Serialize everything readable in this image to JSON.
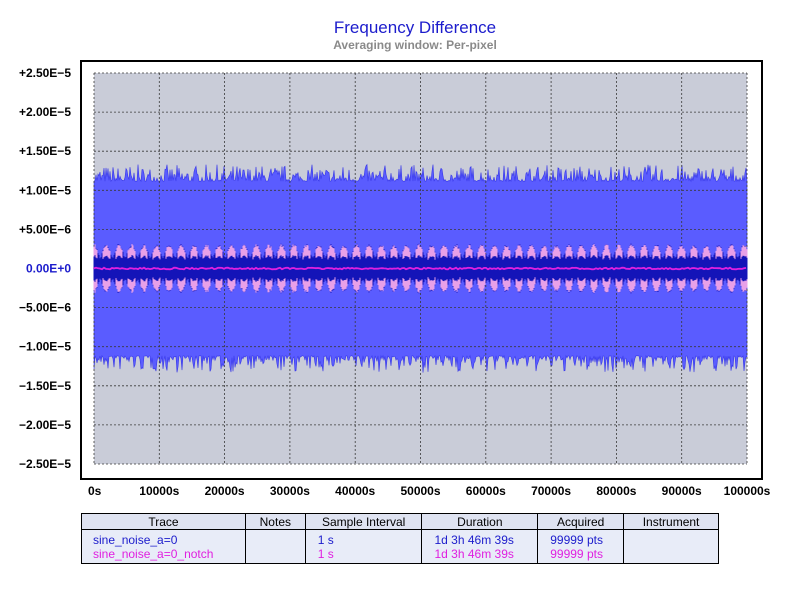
{
  "colors": {
    "plot_background": "#c9ccd8",
    "frame": "#000000",
    "grid": "#3a3a3a",
    "band": "#5a5cff",
    "band_edge": "#3535e8",
    "inner_dark": "#1414b8",
    "inner_pink": "#ffb0ee",
    "trace_a": "#1c1ccc",
    "trace_b": "#e020e0",
    "title": "#1c1ccc",
    "subtitle": "#8a8a8a"
  },
  "chart_data": {
    "type": "line",
    "title": "Frequency Difference",
    "subtitle": "Averaging window: Per-pixel",
    "xlabel": "",
    "ylabel": "",
    "xlim": [
      0,
      100000
    ],
    "ylim": [
      -2.5e-05,
      2.5e-05
    ],
    "grid": true,
    "x_ticks": [
      0,
      10000,
      20000,
      30000,
      40000,
      50000,
      60000,
      70000,
      80000,
      90000,
      100000
    ],
    "x_tick_labels": [
      "0s",
      "10000s",
      "20000s",
      "30000s",
      "40000s",
      "50000s",
      "60000s",
      "70000s",
      "80000s",
      "90000s",
      "100000s"
    ],
    "y_ticks": [
      2.5e-05,
      2e-05,
      1.5e-05,
      1e-05,
      5e-06,
      0,
      -5e-06,
      -1e-05,
      -1.5e-05,
      -2e-05,
      -2.5e-05
    ],
    "y_tick_labels": [
      "+2.50E−5",
      "+2.00E−5",
      "+1.50E−5",
      "+1.00E−5",
      "+5.00E−6",
      "0.00E+0",
      "−5.00E−6",
      "−1.00E−5",
      "−1.50E−5",
      "−2.00E−5",
      "−2.50E−5"
    ],
    "highlighted_y_tick": "0.00E+0",
    "series": [
      {
        "name": "sine_noise_a=0",
        "color": "#1c1ccc",
        "envelope_min_max": [
          -1.2e-05,
          1.2e-05
        ],
        "center": 0
      },
      {
        "name": "sine_noise_a=0_notch",
        "color": "#e020e0",
        "envelope_min_max": [
          -3.2e-06,
          3.2e-06
        ],
        "center": 0
      }
    ]
  },
  "table": {
    "headers": [
      "Trace",
      "Notes",
      "Sample Interval",
      "Duration",
      "Acquired",
      "Instrument"
    ],
    "rows": [
      {
        "trace": "sine_noise_a=0",
        "notes": "",
        "interval": "1 s",
        "duration": "1d 3h 46m 39s",
        "acquired": "99999 pts",
        "instrument": ""
      },
      {
        "trace": "sine_noise_a=0_notch",
        "notes": "",
        "interval": "1 s",
        "duration": "1d 3h 46m 39s",
        "acquired": "99999 pts",
        "instrument": ""
      }
    ]
  }
}
